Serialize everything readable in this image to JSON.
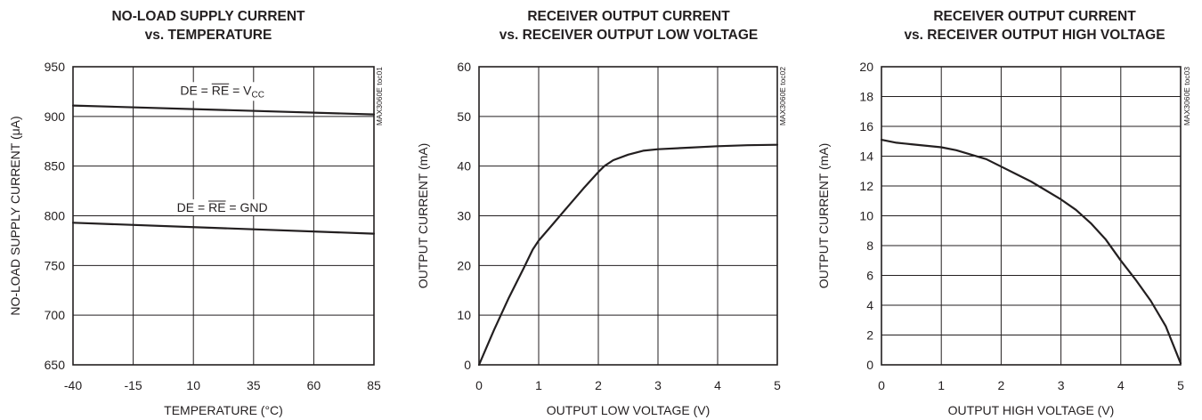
{
  "chart_data": [
    {
      "type": "line",
      "title": [
        "NO-LOAD SUPPLY CURRENT",
        "vs. TEMPERATURE"
      ],
      "xlabel": "TEMPERATURE (°C)",
      "ylabel": "NO-LOAD SUPPLY CURRENT (μA)",
      "side_label": "MAX3060E toc01",
      "xlim": [
        -40,
        85
      ],
      "ylim": [
        650,
        950
      ],
      "x_ticks": [
        -40,
        -15,
        10,
        35,
        60,
        85
      ],
      "y_ticks": [
        650,
        700,
        750,
        800,
        850,
        900,
        950
      ],
      "grid": true,
      "series": [
        {
          "name": "DE = RE = VCC",
          "x": [
            -40,
            85
          ],
          "y": [
            911,
            902
          ]
        },
        {
          "name": "DE = RE = GND",
          "x": [
            -40,
            85
          ],
          "y": [
            793,
            782
          ]
        }
      ],
      "annotations": [
        {
          "pre": "DE = ",
          "over": "RE",
          "post": " = V",
          "sub": "CC",
          "x": 22,
          "y": 922
        },
        {
          "pre": "DE = ",
          "over": "RE",
          "post": " = GND",
          "sub": "",
          "x": 22,
          "y": 804
        }
      ]
    },
    {
      "type": "line",
      "title": [
        "RECEIVER OUTPUT CURRENT",
        "vs. RECEIVER OUTPUT LOW VOLTAGE"
      ],
      "xlabel": "OUTPUT LOW VOLTAGE (V)",
      "ylabel": "OUTPUT CURRENT (mA)",
      "side_label": "MAX3060E toc02",
      "xlim": [
        0,
        5
      ],
      "ylim": [
        0,
        60
      ],
      "x_ticks": [
        0,
        1,
        2,
        3,
        4,
        5
      ],
      "y_ticks": [
        0,
        10,
        20,
        30,
        40,
        50,
        60
      ],
      "grid": true,
      "series": [
        {
          "x": [
            0,
            0.25,
            0.5,
            0.75,
            0.9,
            1.0,
            1.25,
            1.5,
            1.75,
            2.0,
            2.1,
            2.25,
            2.5,
            2.75,
            3.0,
            3.5,
            4.0,
            4.5,
            5.0
          ],
          "y": [
            0,
            7,
            13.5,
            19.5,
            23.2,
            25.0,
            28.5,
            32.0,
            35.5,
            38.8,
            40.0,
            41.2,
            42.3,
            43.1,
            43.4,
            43.7,
            44.0,
            44.2,
            44.3
          ]
        }
      ],
      "annotations": []
    },
    {
      "type": "line",
      "title": [
        "RECEIVER OUTPUT CURRENT",
        "vs. RECEIVER OUTPUT HIGH VOLTAGE"
      ],
      "xlabel": "OUTPUT HIGH VOLTAGE (V)",
      "ylabel": "OUTPUT CURRENT (mA)",
      "side_label": "MAX3060E toc03",
      "xlim": [
        0,
        5
      ],
      "ylim": [
        0,
        20
      ],
      "x_ticks": [
        0,
        1,
        2,
        3,
        4,
        5
      ],
      "y_ticks": [
        0,
        2,
        4,
        6,
        8,
        10,
        12,
        14,
        16,
        18,
        20
      ],
      "grid": true,
      "series": [
        {
          "x": [
            0,
            0.25,
            0.5,
            1.0,
            1.25,
            1.5,
            1.75,
            2.0,
            2.5,
            3.0,
            3.25,
            3.5,
            3.75,
            4.0,
            4.25,
            4.5,
            4.75,
            5.0
          ],
          "y": [
            15.1,
            14.9,
            14.8,
            14.6,
            14.4,
            14.1,
            13.8,
            13.3,
            12.3,
            11.1,
            10.4,
            9.5,
            8.4,
            7.0,
            5.7,
            4.3,
            2.6,
            0.1
          ]
        }
      ],
      "annotations": []
    }
  ]
}
